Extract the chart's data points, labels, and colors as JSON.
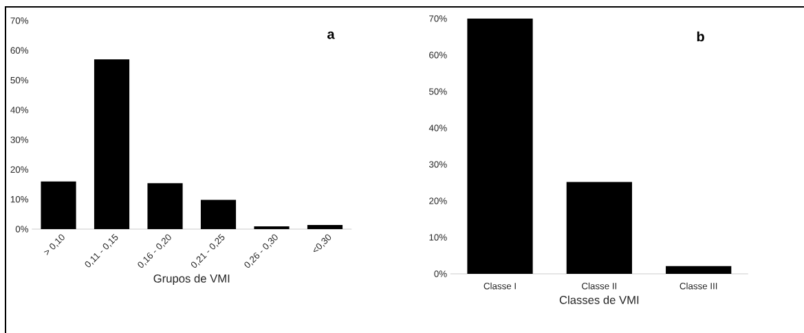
{
  "chart_data": [
    {
      "type": "bar",
      "categories": [
        "> 0,10",
        "0,11 - 0,15",
        "0,16 - 0,20",
        "0,21 - 0,25",
        "0,26 - 0,30",
        "<0,30"
      ],
      "values": [
        16,
        57,
        15.4,
        9.8,
        0.9,
        1.4
      ],
      "color": "#000000",
      "xlabel": "Grupos de VMI",
      "ylim": [
        0,
        70
      ],
      "yticks": [
        {
          "value": 0,
          "label": "0%"
        },
        {
          "value": 10,
          "label": "10%"
        },
        {
          "value": 20,
          "label": "20%"
        },
        {
          "value": 30,
          "label": "30%"
        },
        {
          "value": 40,
          "label": "40%"
        },
        {
          "value": 50,
          "label": "50%"
        },
        {
          "value": 60,
          "label": "60%"
        },
        {
          "value": 70,
          "label": "70%"
        }
      ],
      "annotations": [
        "a"
      ]
    },
    {
      "type": "bar",
      "categories": [
        "Classe I",
        "Classe II",
        "Classe III"
      ],
      "values": [
        70,
        25.2,
        2.1
      ],
      "color": "#000000",
      "xlabel": "Classes de VMI",
      "ylim": [
        0,
        70
      ],
      "yticks": [
        {
          "value": 0,
          "label": "0%"
        },
        {
          "value": 10,
          "label": "10%"
        },
        {
          "value": 20,
          "label": "20%"
        },
        {
          "value": 30,
          "label": "30%"
        },
        {
          "value": 40,
          "label": "40%"
        },
        {
          "value": 50,
          "label": "50%"
        },
        {
          "value": 60,
          "label": "60%"
        },
        {
          "value": 70,
          "label": "70%"
        }
      ],
      "annotations": [
        "b"
      ]
    }
  ]
}
